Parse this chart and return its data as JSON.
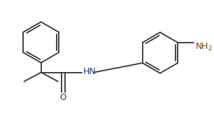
{
  "bg_color": "#ffffff",
  "line_color": "#333333",
  "text_color_HN": "#1a3a8a",
  "text_color_O": "#333333",
  "text_color_NH2": "#7a4500",
  "figsize": [
    3.06,
    1.66
  ],
  "dpi": 100,
  "lw": 1.3,
  "font_size": 8.5
}
